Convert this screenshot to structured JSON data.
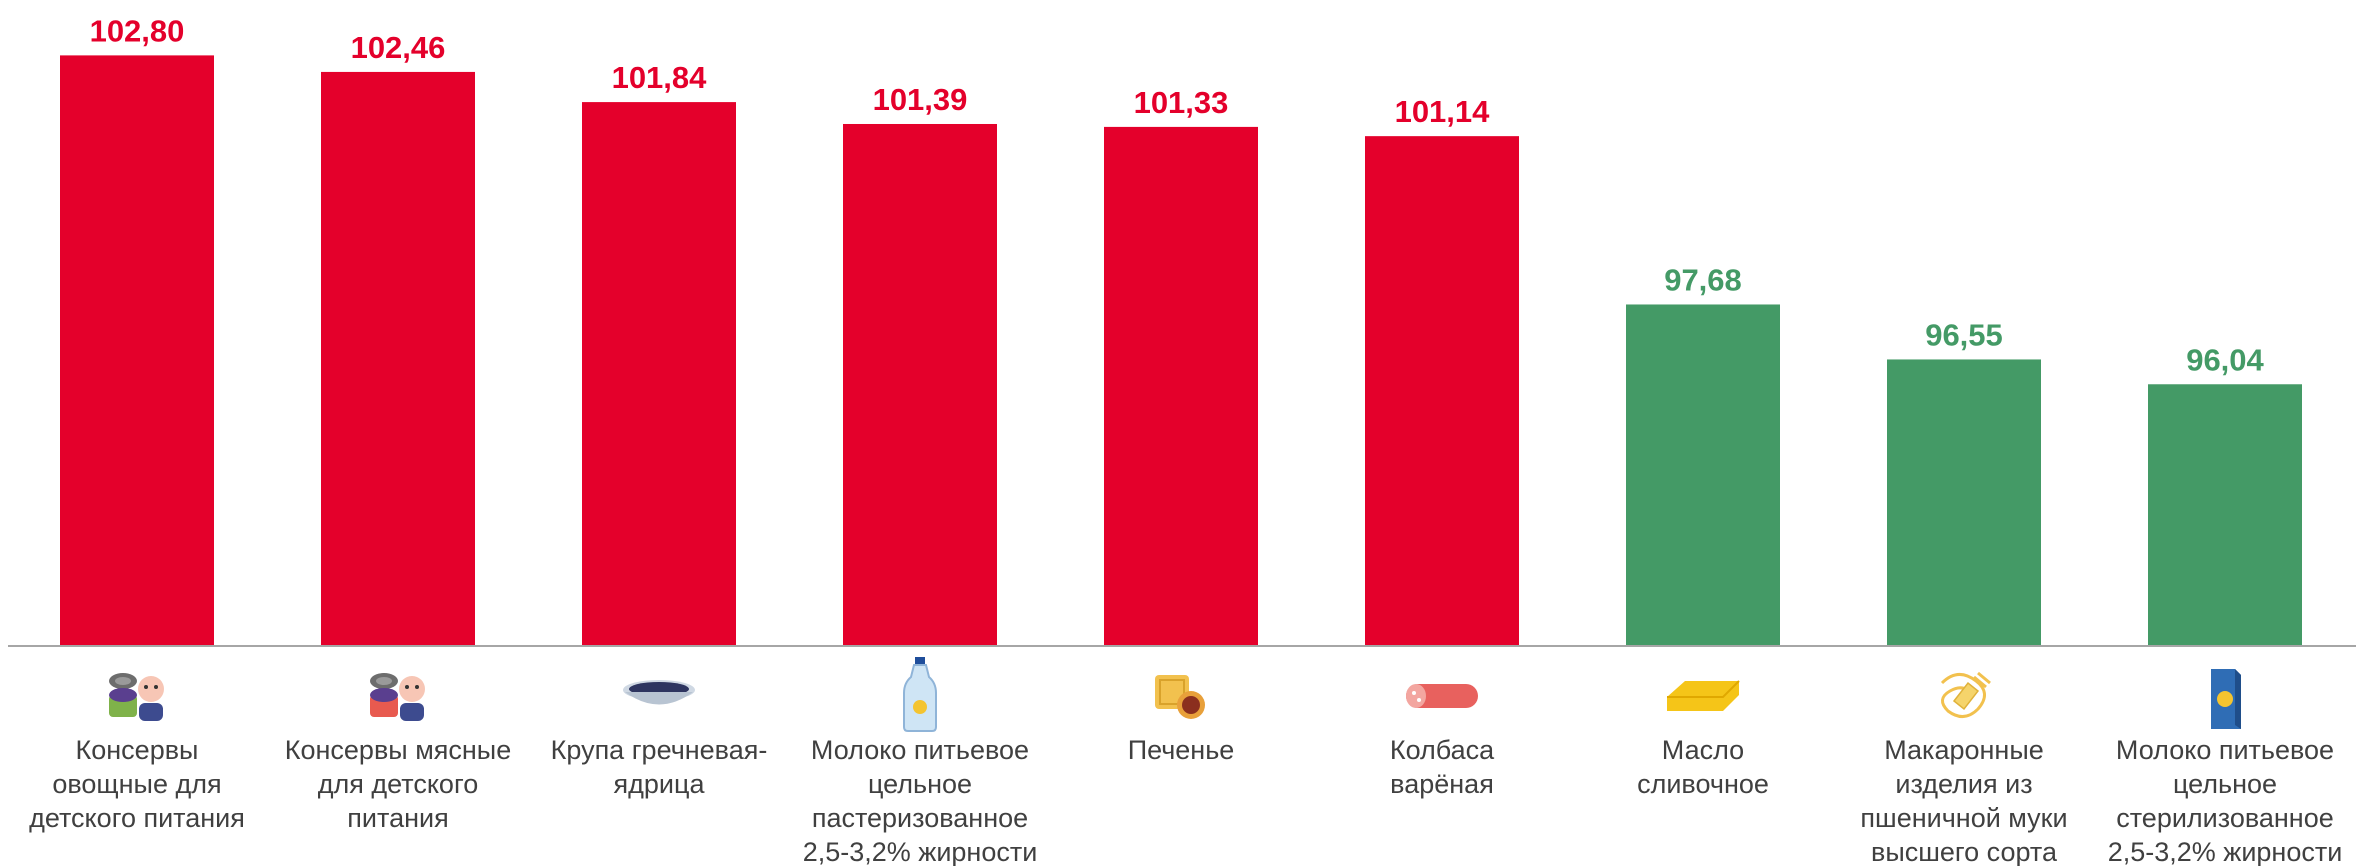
{
  "chart_data": {
    "type": "bar",
    "categories": [
      [
        "Консервы",
        "овощные для",
        "детского питания"
      ],
      [
        "Консервы мясные",
        "для детского",
        "питания"
      ],
      [
        "Крупа гречневая-",
        "ядрица"
      ],
      [
        "Молоко питьевое",
        "цельное",
        "пастеризованное",
        "2,5-3,2% жирности"
      ],
      [
        "Печенье"
      ],
      [
        "Колбаса",
        "варёная"
      ],
      [
        "Масло",
        "сливочное"
      ],
      [
        "Макаронные",
        "изделия из",
        "пшеничной муки",
        "высшего сорта"
      ],
      [
        "Молоко питьевое",
        "цельное",
        "стерилизованное",
        "2,5-3,2% жирности"
      ]
    ],
    "values": [
      102.8,
      102.46,
      101.84,
      101.39,
      101.33,
      101.14,
      97.68,
      96.55,
      96.04
    ],
    "value_labels": [
      "102,80",
      "102,46",
      "101,84",
      "101,39",
      "101,33",
      "101,14",
      "97,68",
      "96,55",
      "96,04"
    ],
    "icons": [
      "canned-vegetables-baby-icon",
      "canned-meat-baby-icon",
      "buckwheat-bowl-icon",
      "milk-bottle-icon",
      "cookie-icon",
      "boiled-sausage-icon",
      "butter-icon",
      "pasta-icon",
      "milk-carton-icon"
    ],
    "colors": {
      "above_100": "#E4002B",
      "below_100": "#449A66",
      "axis": "#A6A6A6",
      "label": "#404040"
    },
    "grid": false,
    "legend": "none"
  }
}
